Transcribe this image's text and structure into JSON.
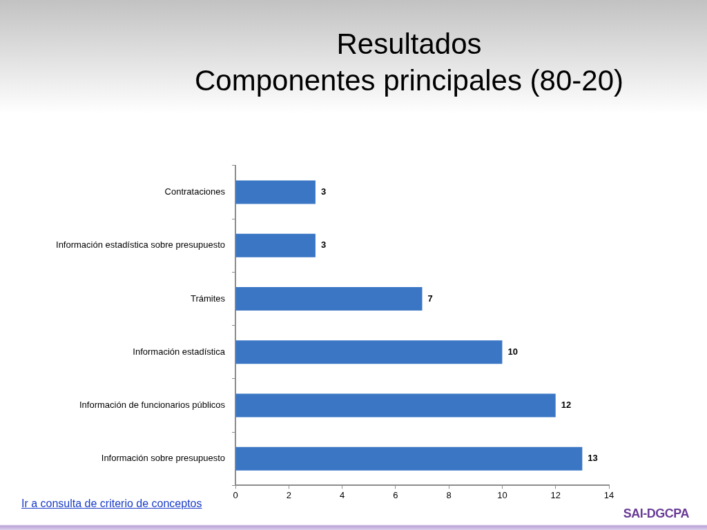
{
  "chart_data": {
    "type": "bar",
    "title": "Resultados",
    "subtitle": "Componentes principales (80-20)",
    "orientation": "horizontal",
    "categories": [
      "Contrataciones",
      "Información estadística sobre presupuesto",
      "Trámites",
      "Información estadística",
      "Información de funcionarios públicos",
      "Información sobre presupuesto"
    ],
    "values": [
      3,
      3,
      7,
      10,
      12,
      13
    ],
    "color": "#3a76c4",
    "xlim": [
      0,
      14
    ],
    "xticks": [
      0,
      2,
      4,
      6,
      8,
      10,
      12,
      14
    ],
    "data_labels": true,
    "annotations": [
      "Ir a consulta de criterio de conceptos",
      "SAI-DGCPA"
    ]
  }
}
